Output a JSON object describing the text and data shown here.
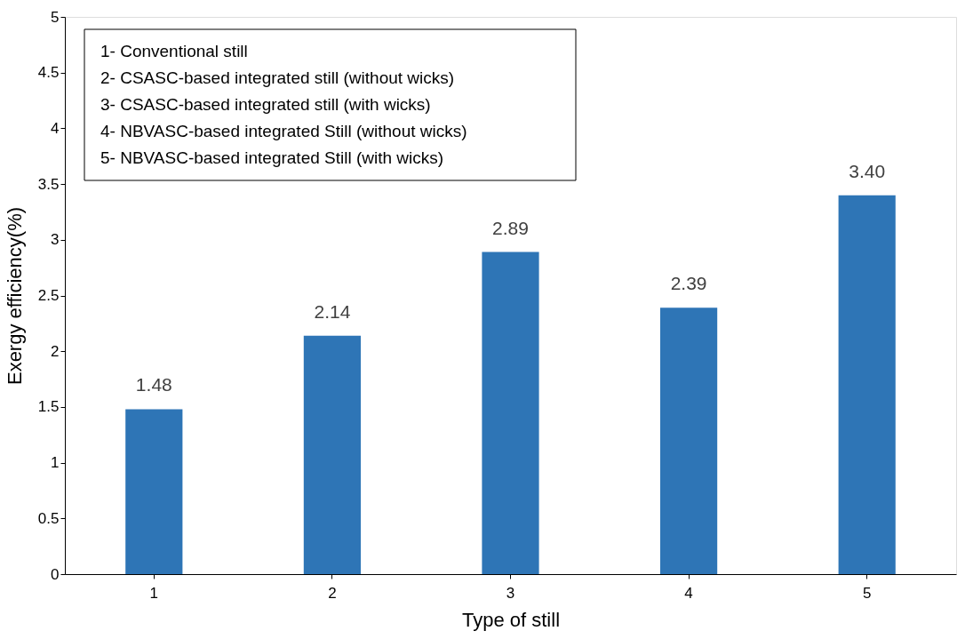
{
  "chart_data": {
    "type": "bar",
    "xlabel": "Type of still",
    "ylabel": "Exergy efficiency(%)",
    "categories": [
      "1",
      "2",
      "3",
      "4",
      "5"
    ],
    "values": [
      1.48,
      2.14,
      2.89,
      2.39,
      3.4
    ],
    "value_labels": [
      "1.48",
      "2.14",
      "2.89",
      "2.39",
      "3.40"
    ],
    "color": "#2e75b6",
    "ylim": [
      0,
      5
    ],
    "yticks": [
      0,
      0.5,
      1,
      1.5,
      2,
      2.5,
      3,
      3.5,
      4,
      4.5,
      5
    ],
    "grid": false,
    "annotations": [
      "1- Conventional still",
      "2- CSASC-based integrated still (without wicks)",
      "3- CSASC-based integrated still (with wicks)",
      "4- NBVASC-based integrated Still (without wicks)",
      "5- NBVASC-based integrated Still (with wicks)"
    ]
  }
}
